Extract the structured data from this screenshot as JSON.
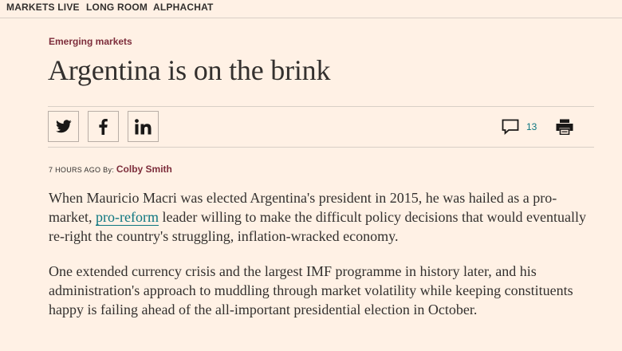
{
  "nav": {
    "items": [
      "MARKETS LIVE",
      "LONG ROOM",
      "ALPHACHAT"
    ]
  },
  "article": {
    "topic": "Emerging markets",
    "headline": "Argentina is on the brink",
    "comment_count": "13",
    "byline": {
      "time": "7 HOURS AGO",
      "by": "By:",
      "author": "Colby Smith"
    },
    "paragraph1": {
      "before_link": "When Mauricio Macri was elected Argentina's president in 2015, he was hailed as a pro-market, ",
      "link": "pro-reform",
      "after_link": " leader willing to make the difficult policy decisions that would eventually re-right the country's struggling, inflation-wracked economy."
    },
    "paragraph2": "One extended currency crisis and the largest IMF programme in history later, and his administration's approach to muddling through market volatility while keeping constituents happy is failing ahead of the all-important presidential election in October."
  },
  "share": {
    "icons": [
      "twitter-icon",
      "facebook-icon",
      "linkedin-icon"
    ]
  },
  "colors": {
    "background": "#fff1e5",
    "topic": "#7d2d3b",
    "link": "#0d7680",
    "text": "#33302e"
  }
}
